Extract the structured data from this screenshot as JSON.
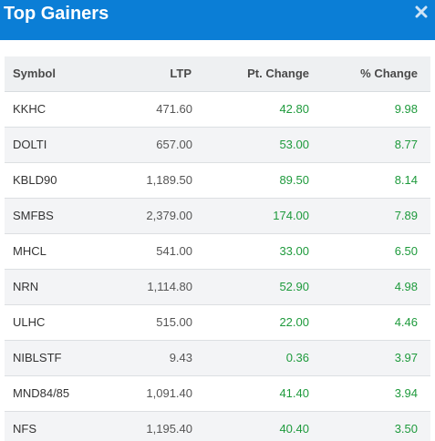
{
  "header": {
    "title": "Top Gainers",
    "close_icon": "close-icon",
    "background": "#0b7ed6"
  },
  "table": {
    "columns": [
      "Symbol",
      "LTP",
      "Pt. Change",
      "% Change"
    ],
    "rows": [
      {
        "symbol": "KKHC",
        "ltp": "471.60",
        "pt_change": "42.80",
        "pct_change": "9.98"
      },
      {
        "symbol": "DOLTI",
        "ltp": "657.00",
        "pt_change": "53.00",
        "pct_change": "8.77"
      },
      {
        "symbol": "KBLD90",
        "ltp": "1,189.50",
        "pt_change": "89.50",
        "pct_change": "8.14"
      },
      {
        "symbol": "SMFBS",
        "ltp": "2,379.00",
        "pt_change": "174.00",
        "pct_change": "7.89"
      },
      {
        "symbol": "MHCL",
        "ltp": "541.00",
        "pt_change": "33.00",
        "pct_change": "6.50"
      },
      {
        "symbol": "NRN",
        "ltp": "1,114.80",
        "pt_change": "52.90",
        "pct_change": "4.98"
      },
      {
        "symbol": "ULHC",
        "ltp": "515.00",
        "pt_change": "22.00",
        "pct_change": "4.46"
      },
      {
        "symbol": "NIBLSTF",
        "ltp": "9.43",
        "pt_change": "0.36",
        "pct_change": "3.97"
      },
      {
        "symbol": "MND84/85",
        "ltp": "1,091.40",
        "pt_change": "41.40",
        "pct_change": "3.94"
      },
      {
        "symbol": "NFS",
        "ltp": "1,195.40",
        "pt_change": "40.40",
        "pct_change": "3.50"
      }
    ],
    "positive_color": "#1e9a3c"
  }
}
